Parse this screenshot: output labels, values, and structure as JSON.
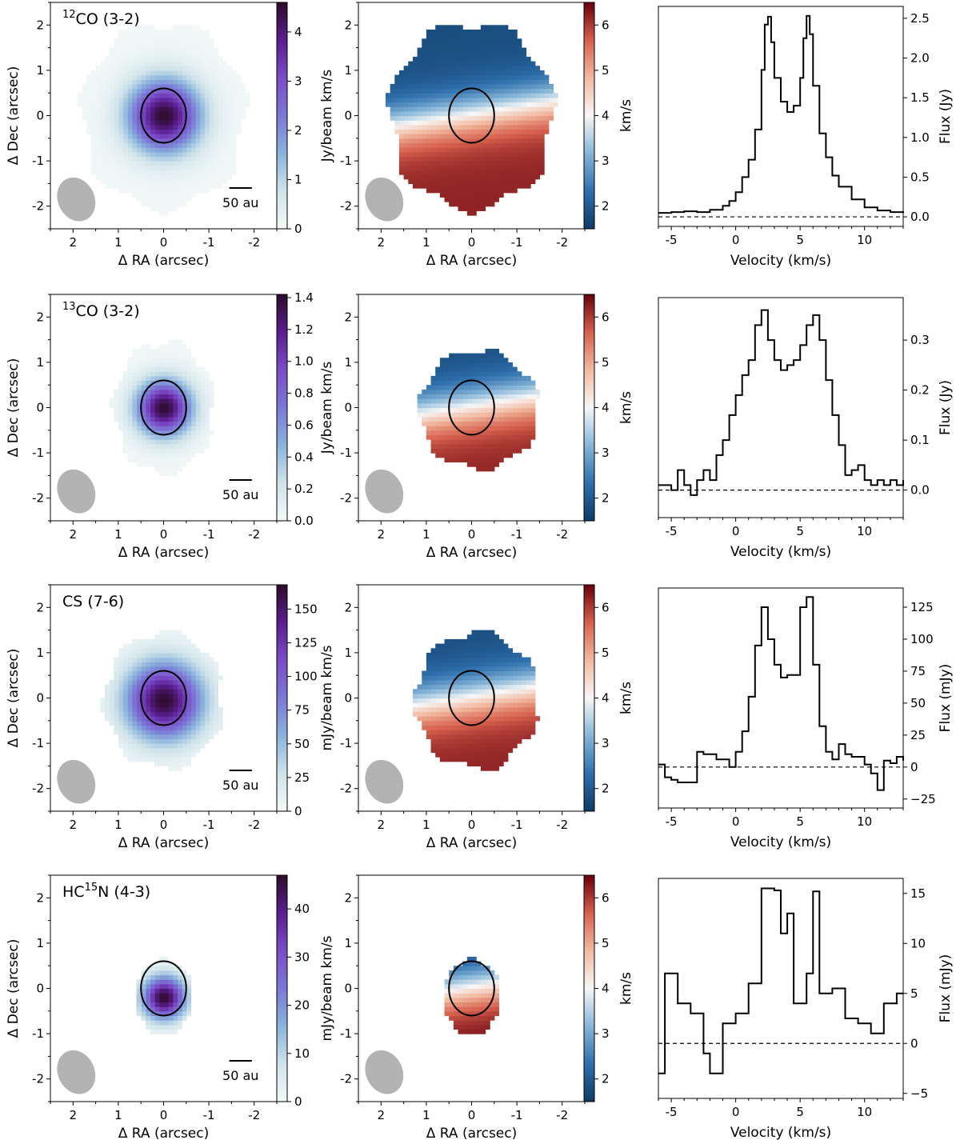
{
  "colors": {
    "beam": "#b3b3b3",
    "contour": "#000000",
    "mom0": [
      "#f4f9f8",
      "#cfe3ea",
      "#8ab3dc",
      "#7b78d6",
      "#7b4cc7",
      "#5a1e8f",
      "#2d0b2a"
    ],
    "mom1": [
      "#0d3b66",
      "#2f6fad",
      "#86b6d8",
      "#f7f7f7",
      "#f2b9a0",
      "#d6604d",
      "#67000d"
    ]
  },
  "chart_data": [
    {
      "type": "heatmap",
      "role": "moment0",
      "row": 0,
      "title": "CO (3-2)",
      "title_sup": "12",
      "xlabel": "Δ RA (arcsec)",
      "ylabel": "Δ Dec (arcsec)",
      "xlim": [
        2.5,
        -2.5
      ],
      "ylim": [
        -2.5,
        2.5
      ],
      "xticks": [
        2,
        1,
        0,
        -1,
        -2
      ],
      "yticks": [
        -2,
        -1,
        0,
        1,
        2
      ],
      "colorbar": {
        "label": "Jy/beam km/s",
        "range": [
          0,
          4.6
        ],
        "ticks": [
          0,
          1,
          2,
          3,
          4
        ],
        "tick_labels": [
          "0",
          "1",
          "2",
          "3",
          "4"
        ]
      },
      "emission": {
        "center": [
          0,
          0
        ],
        "rx": 1.8,
        "ry": 2.05,
        "sigma": 0.55,
        "peak": 1.0
      },
      "scalebar": {
        "label": "50 au",
        "length_arcsec": 0.5
      },
      "beam": {
        "bmaj_arcsec": 1.05,
        "bmin_arcsec": 0.85,
        "ra_offset": 2.0,
        "dec_offset": -1.85
      },
      "contour": {
        "rx": 0.5,
        "ry": 0.6
      }
    },
    {
      "type": "heatmap",
      "role": "moment1",
      "row": 0,
      "title": "",
      "xlabel": "Δ RA (arcsec)",
      "xlim": [
        2.5,
        -2.5
      ],
      "ylim": [
        -2.5,
        2.5
      ],
      "xticks": [
        2,
        1,
        0,
        -1,
        -2
      ],
      "yticks": [
        -2,
        -1,
        0,
        1,
        2
      ],
      "colorbar": {
        "label": "km/s",
        "range": [
          1.5,
          6.5
        ],
        "ticks": [
          2,
          3,
          4,
          5,
          6
        ],
        "tick_labels": [
          "2",
          "3",
          "4",
          "5",
          "6"
        ]
      },
      "emission": {
        "center": [
          0,
          0
        ],
        "rx": 1.8,
        "ry": 2.05
      },
      "velocity": {
        "systemic": 4.0,
        "amplitude": 2.2,
        "gradient": "north-blue"
      },
      "beam": {
        "bmaj_arcsec": 1.05,
        "bmin_arcsec": 0.85,
        "ra_offset": 2.0,
        "dec_offset": -1.85
      },
      "contour": {
        "rx": 0.5,
        "ry": 0.6
      }
    },
    {
      "type": "line",
      "role": "spectrum",
      "row": 0,
      "xlabel": "Velocity (km/s)",
      "ylabel": "Flux (Jy)",
      "xlim": [
        -6,
        13
      ],
      "ylim": [
        -0.12,
        2.65
      ],
      "xticks": [
        -5,
        0,
        5,
        10
      ],
      "yticks": [
        0.0,
        0.5,
        1.0,
        1.5,
        2.0,
        2.5
      ],
      "ytick_labels": [
        "0.0",
        "0.5",
        "1.0",
        "1.5",
        "2.0",
        "2.5"
      ],
      "x": [
        -6.0,
        -5.0,
        -4.0,
        -3.0,
        -2.0,
        -1.0,
        -0.5,
        0.0,
        0.5,
        1.0,
        1.5,
        2.0,
        2.25,
        2.5,
        2.75,
        3.0,
        3.5,
        4.0,
        4.5,
        5.0,
        5.25,
        5.5,
        5.75,
        6.0,
        6.5,
        7.0,
        7.5,
        8.0,
        9.0,
        10.0,
        11.0,
        12.0,
        13.0
      ],
      "values": [
        0.05,
        0.06,
        0.07,
        0.06,
        0.09,
        0.14,
        0.2,
        0.31,
        0.5,
        0.72,
        1.1,
        1.85,
        2.42,
        2.52,
        2.2,
        1.75,
        1.45,
        1.32,
        1.4,
        1.75,
        2.25,
        2.53,
        2.3,
        1.65,
        1.05,
        0.75,
        0.52,
        0.38,
        0.22,
        0.12,
        0.08,
        0.06,
        0.05
      ]
    },
    {
      "type": "heatmap",
      "role": "moment0",
      "row": 1,
      "title": "CO (3-2)",
      "title_sup": "13",
      "xlabel": "Δ RA (arcsec)",
      "ylabel": "Δ Dec (arcsec)",
      "xlim": [
        2.5,
        -2.5
      ],
      "ylim": [
        -2.5,
        2.5
      ],
      "xticks": [
        2,
        1,
        0,
        -1,
        -2
      ],
      "yticks": [
        -2,
        -1,
        0,
        1,
        2
      ],
      "colorbar": {
        "label": "Jy/beam km/s",
        "range": [
          0,
          1.42
        ],
        "ticks": [
          0.0,
          0.2,
          0.4,
          0.6,
          0.8,
          1.0,
          1.2,
          1.4
        ],
        "tick_labels": [
          "0.0",
          "0.2",
          "0.4",
          "0.6",
          "0.8",
          "1.0",
          "1.2",
          "1.4"
        ]
      },
      "emission": {
        "center": [
          0,
          0
        ],
        "rx": 1.1,
        "ry": 1.45,
        "sigma": 0.42,
        "peak": 1.0
      },
      "scalebar": {
        "label": "50 au",
        "length_arcsec": 0.5
      },
      "beam": {
        "bmaj_arcsec": 1.05,
        "bmin_arcsec": 0.85,
        "ra_offset": 2.0,
        "dec_offset": -1.85
      },
      "contour": {
        "rx": 0.5,
        "ry": 0.6
      }
    },
    {
      "type": "heatmap",
      "role": "moment1",
      "row": 1,
      "title": "",
      "xlabel": "Δ RA (arcsec)",
      "xlim": [
        2.5,
        -2.5
      ],
      "ylim": [
        -2.5,
        2.5
      ],
      "xticks": [
        2,
        1,
        0,
        -1,
        -2
      ],
      "yticks": [
        -2,
        -1,
        0,
        1,
        2
      ],
      "colorbar": {
        "label": "km/s",
        "range": [
          1.5,
          6.5
        ],
        "ticks": [
          2,
          3,
          4,
          5,
          6
        ],
        "tick_labels": [
          "2",
          "3",
          "4",
          "5",
          "6"
        ]
      },
      "emission": {
        "center": [
          -0.15,
          -0.05
        ],
        "rx": 1.3,
        "ry": 1.3
      },
      "velocity": {
        "systemic": 4.0,
        "amplitude": 2.2,
        "gradient": "north-blue"
      },
      "beam": {
        "bmaj_arcsec": 1.05,
        "bmin_arcsec": 0.85,
        "ra_offset": 2.0,
        "dec_offset": -1.85
      },
      "contour": {
        "rx": 0.5,
        "ry": 0.6
      }
    },
    {
      "type": "line",
      "role": "spectrum",
      "row": 1,
      "xlabel": "Velocity (km/s)",
      "ylabel": "Flux (Jy)",
      "xlim": [
        -6,
        13
      ],
      "ylim": [
        -0.055,
        0.385
      ],
      "xticks": [
        -5,
        0,
        5,
        10
      ],
      "yticks": [
        0.0,
        0.1,
        0.2,
        0.3
      ],
      "ytick_labels": [
        "0.0",
        "0.1",
        "0.2",
        "0.3"
      ],
      "x": [
        -6.0,
        -5.0,
        -4.5,
        -4.0,
        -3.5,
        -3.0,
        -2.5,
        -2.0,
        -1.5,
        -1.0,
        -0.5,
        0.0,
        0.5,
        1.0,
        1.5,
        2.0,
        2.5,
        3.0,
        3.5,
        4.0,
        4.5,
        5.0,
        5.5,
        6.0,
        6.5,
        7.0,
        7.5,
        8.0,
        8.5,
        9.0,
        9.5,
        10.0,
        10.5,
        11.0,
        11.5,
        12.0,
        12.5,
        13.0
      ],
      "values": [
        0.01,
        0.0,
        0.04,
        0.01,
        -0.01,
        0.02,
        0.04,
        0.02,
        0.07,
        0.1,
        0.15,
        0.19,
        0.23,
        0.26,
        0.33,
        0.36,
        0.3,
        0.26,
        0.24,
        0.25,
        0.26,
        0.29,
        0.33,
        0.35,
        0.3,
        0.22,
        0.15,
        0.09,
        0.03,
        0.04,
        0.05,
        0.02,
        0.01,
        0.02,
        0.01,
        0.02,
        0.01,
        0.02
      ]
    },
    {
      "type": "heatmap",
      "role": "moment0",
      "row": 2,
      "title": "CS (7-6)",
      "title_sup": "",
      "xlabel": "Δ RA (arcsec)",
      "ylabel": "Δ Dec (arcsec)",
      "xlim": [
        2.5,
        -2.5
      ],
      "ylim": [
        -2.5,
        2.5
      ],
      "xticks": [
        2,
        1,
        0,
        -1,
        -2
      ],
      "yticks": [
        -2,
        -1,
        0,
        1,
        2
      ],
      "colorbar": {
        "label": "mJy/beam km/s",
        "range": [
          0,
          168
        ],
        "ticks": [
          0,
          25,
          50,
          75,
          100,
          125,
          150
        ],
        "tick_labels": [
          "0",
          "25",
          "50",
          "75",
          "100",
          "125",
          "150"
        ]
      },
      "emission": {
        "center": [
          0,
          -0.05
        ],
        "rx": 1.3,
        "ry": 1.5,
        "sigma": 0.58,
        "peak": 1.0
      },
      "scalebar": {
        "label": "50 au",
        "length_arcsec": 0.5
      },
      "beam": {
        "bmaj_arcsec": 1.05,
        "bmin_arcsec": 0.85,
        "ra_offset": 2.0,
        "dec_offset": -1.85
      },
      "contour": {
        "rx": 0.5,
        "ry": 0.6
      }
    },
    {
      "type": "heatmap",
      "role": "moment1",
      "row": 2,
      "title": "",
      "xlabel": "Δ RA (arcsec)",
      "xlim": [
        2.5,
        -2.5
      ],
      "ylim": [
        -2.5,
        2.5
      ],
      "xticks": [
        2,
        1,
        0,
        -1,
        -2
      ],
      "yticks": [
        -2,
        -1,
        0,
        1,
        2
      ],
      "colorbar": {
        "label": "km/s",
        "range": [
          1.5,
          6.5
        ],
        "ticks": [
          2,
          3,
          4,
          5,
          6
        ],
        "tick_labels": [
          "2",
          "3",
          "4",
          "5",
          "6"
        ]
      },
      "emission": {
        "center": [
          -0.1,
          -0.05
        ],
        "rx": 1.35,
        "ry": 1.5
      },
      "velocity": {
        "systemic": 4.0,
        "amplitude": 2.2,
        "gradient": "north-blue"
      },
      "beam": {
        "bmaj_arcsec": 1.05,
        "bmin_arcsec": 0.85,
        "ra_offset": 2.0,
        "dec_offset": -1.85
      },
      "contour": {
        "rx": 0.5,
        "ry": 0.6
      }
    },
    {
      "type": "line",
      "role": "spectrum",
      "row": 2,
      "xlabel": "Velocity (km/s)",
      "ylabel": "Flux (mJy)",
      "xlim": [
        -6,
        13
      ],
      "ylim": [
        -32,
        140
      ],
      "xticks": [
        -5,
        0,
        5,
        10
      ],
      "yticks": [
        -25,
        0,
        25,
        50,
        75,
        100,
        125
      ],
      "ytick_labels": [
        "−25",
        "0",
        "25",
        "50",
        "75",
        "100",
        "125"
      ],
      "x": [
        -6.0,
        -5.5,
        -5.0,
        -4.5,
        -4.0,
        -3.0,
        -2.5,
        -2.0,
        -1.5,
        -1.0,
        -0.5,
        0.0,
        0.5,
        1.0,
        1.5,
        2.0,
        2.5,
        3.0,
        3.5,
        4.0,
        4.5,
        5.0,
        5.5,
        6.0,
        6.5,
        7.0,
        7.5,
        8.0,
        8.5,
        9.0,
        10.0,
        10.5,
        11.0,
        11.5,
        12.0,
        12.5,
        13.0
      ],
      "values": [
        2,
        -8,
        -10,
        -12,
        -12,
        12,
        10,
        10,
        6,
        6,
        0,
        12,
        28,
        55,
        95,
        125,
        100,
        80,
        70,
        72,
        72,
        125,
        133,
        80,
        32,
        12,
        6,
        18,
        10,
        8,
        2,
        -5,
        -18,
        5,
        3,
        8,
        5
      ]
    },
    {
      "type": "heatmap",
      "role": "moment0",
      "row": 3,
      "title": "HC N (4-3)",
      "title_sup": "15",
      "xlabel": "Δ RA (arcsec)",
      "ylabel": "Δ Dec (arcsec)",
      "xlim": [
        2.5,
        -2.5
      ],
      "ylim": [
        -2.5,
        2.5
      ],
      "xticks": [
        2,
        1,
        0,
        -1,
        -2
      ],
      "yticks": [
        -2,
        -1,
        0,
        1,
        2
      ],
      "colorbar": {
        "label": "mJy/beam km/s",
        "range": [
          0,
          47
        ],
        "ticks": [
          0,
          10,
          20,
          30,
          40
        ],
        "tick_labels": [
          "0",
          "10",
          "20",
          "30",
          "40"
        ]
      },
      "emission": {
        "center": [
          0,
          -0.2
        ],
        "rx": 0.62,
        "ry": 0.85,
        "sigma": 0.33,
        "peak": 1.0
      },
      "scalebar": {
        "label": "50 au",
        "length_arcsec": 0.5
      },
      "beam": {
        "bmaj_arcsec": 1.05,
        "bmin_arcsec": 0.85,
        "ra_offset": 2.0,
        "dec_offset": -1.85
      },
      "contour": {
        "rx": 0.5,
        "ry": 0.6
      }
    },
    {
      "type": "heatmap",
      "role": "moment1",
      "row": 3,
      "title": "",
      "xlabel": "Δ RA (arcsec)",
      "xlim": [
        2.5,
        -2.5
      ],
      "ylim": [
        -2.5,
        2.5
      ],
      "xticks": [
        2,
        1,
        0,
        -1,
        -2
      ],
      "yticks": [
        -2,
        -1,
        0,
        1,
        2
      ],
      "colorbar": {
        "label": "km/s",
        "range": [
          1.5,
          6.5
        ],
        "ticks": [
          2,
          3,
          4,
          5,
          6
        ],
        "tick_labels": [
          "2",
          "3",
          "4",
          "5",
          "6"
        ]
      },
      "emission": {
        "center": [
          0,
          -0.2
        ],
        "rx": 0.62,
        "ry": 0.85
      },
      "velocity": {
        "systemic": 4.0,
        "amplitude": 2.4,
        "gradient": "north-blue"
      },
      "beam": {
        "bmaj_arcsec": 1.05,
        "bmin_arcsec": 0.85,
        "ra_offset": 2.0,
        "dec_offset": -1.85
      },
      "contour": {
        "rx": 0.5,
        "ry": 0.6
      }
    },
    {
      "type": "line",
      "role": "spectrum",
      "row": 3,
      "xlabel": "Velocity (km/s)",
      "ylabel": "Flux (mJy)",
      "xlim": [
        -6,
        13
      ],
      "ylim": [
        -5.5,
        16.5
      ],
      "xticks": [
        -5,
        0,
        5,
        10
      ],
      "yticks": [
        -5,
        0,
        5,
        10,
        15
      ],
      "ytick_labels": [
        "−5",
        "0",
        "5",
        "10",
        "15"
      ],
      "x": [
        -6.0,
        -5.5,
        -4.5,
        -3.5,
        -2.5,
        -2.0,
        -1.0,
        0.0,
        1.0,
        2.0,
        3.0,
        3.5,
        4.0,
        4.5,
        5.5,
        6.0,
        6.5,
        7.5,
        8.5,
        9.5,
        10.5,
        11.5,
        12.5
      ],
      "values": [
        -3,
        7,
        4,
        3,
        -1,
        -3,
        2,
        3,
        6,
        15.5,
        15.3,
        11,
        13,
        4,
        7,
        15.2,
        5,
        5.5,
        2.5,
        2.0,
        1.0,
        4.0,
        5.0
      ]
    }
  ]
}
